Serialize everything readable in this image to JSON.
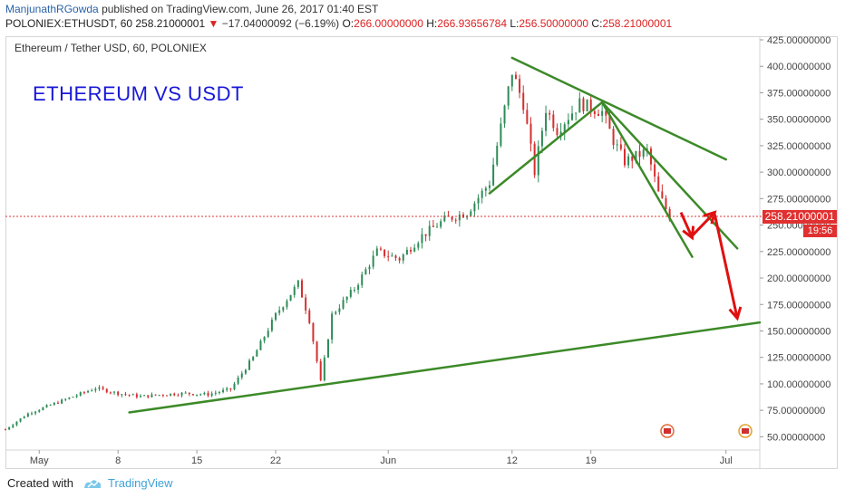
{
  "header": {
    "author": "ManjunathRGowda",
    "published": " published on TradingView.com, June 26, 2017 01:40 EST",
    "symbol": "POLONIEX:ETHUSDT, 60  258.21000001",
    "change_arrow": "▼",
    "change": " −17.04000092 (−6.19%)",
    "o_key": " O:",
    "o_val": "266.00000000",
    "h_key": " H:",
    "h_val": "266.93656784",
    "l_key": " L:",
    "l_val": "256.50000000",
    "c_key": " C:",
    "c_val": "258.21000001"
  },
  "pane_title": "Ethereum / Tether USD, 60, POLONIEX",
  "annotation_title": "ETHEREUM VS USDT",
  "price_tag": "258.21000001",
  "time_tag": "19:56",
  "footer": {
    "created_with": "Created with",
    "brand": "TradingView"
  },
  "colors": {
    "up": "#2e8b57",
    "down": "#d23030",
    "trend": "#3c8a28",
    "arrow": "#e01010",
    "title": "#1818d8"
  },
  "chart_data": {
    "type": "candlestick",
    "title": "Ethereum / Tether USD, 60, POLONIEX",
    "xlabel": "",
    "ylabel": "",
    "ylim": [
      37.5,
      425
    ],
    "y_ticks": [
      "425.00000000",
      "400.00000000",
      "375.00000000",
      "350.00000000",
      "325.00000000",
      "300.00000000",
      "275.00000000",
      "250.00000000",
      "225.00000000",
      "200.00000000",
      "175.00000000",
      "150.00000000",
      "125.00000000",
      "100.00000000",
      "75.00000000",
      "50.00000000"
    ],
    "y_tick_values": [
      425,
      400,
      375,
      350,
      325,
      300,
      275,
      250,
      225,
      200,
      175,
      150,
      125,
      100,
      75,
      50
    ],
    "x_ticks": [
      "May",
      "8",
      "15",
      "22",
      "Jun",
      "12",
      "19",
      "Jul"
    ],
    "x_tick_dates": [
      "2017-05-01",
      "2017-05-08",
      "2017-05-15",
      "2017-05-22",
      "2017-06-01",
      "2017-06-12",
      "2017-06-19",
      "2017-07-01"
    ],
    "x_range": [
      "2017-04-28",
      "2017-07-04"
    ],
    "price_path": [
      [
        "2017-04-28",
        57
      ],
      [
        "2017-04-30",
        72
      ],
      [
        "2017-05-02",
        80
      ],
      [
        "2017-05-04",
        88
      ],
      [
        "2017-05-06",
        96
      ],
      [
        "2017-05-08",
        91
      ],
      [
        "2017-05-10",
        88
      ],
      [
        "2017-05-12",
        90
      ],
      [
        "2017-05-14",
        91
      ],
      [
        "2017-05-16",
        90
      ],
      [
        "2017-05-18",
        95
      ],
      [
        "2017-05-20",
        125
      ],
      [
        "2017-05-22",
        165
      ],
      [
        "2017-05-24",
        195
      ],
      [
        "2017-05-25",
        160
      ],
      [
        "2017-05-26",
        102
      ],
      [
        "2017-05-27",
        165
      ],
      [
        "2017-05-29",
        190
      ],
      [
        "2017-05-31",
        225
      ],
      [
        "2017-06-02",
        218
      ],
      [
        "2017-06-04",
        240
      ],
      [
        "2017-06-06",
        255
      ],
      [
        "2017-06-08",
        262
      ],
      [
        "2017-06-10",
        290
      ],
      [
        "2017-06-12",
        395
      ],
      [
        "2017-06-13",
        365
      ],
      [
        "2017-06-14",
        300
      ],
      [
        "2017-06-15",
        360
      ],
      [
        "2017-06-16",
        340
      ],
      [
        "2017-06-18",
        365
      ],
      [
        "2017-06-20",
        357
      ],
      [
        "2017-06-21",
        330
      ],
      [
        "2017-06-22",
        310
      ],
      [
        "2017-06-24",
        320
      ],
      [
        "2017-06-25",
        280
      ],
      [
        "2017-06-26",
        258
      ]
    ],
    "trendlines": [
      {
        "from": [
          "2017-05-09",
          73
        ],
        "to": [
          "2017-07-04",
          158
        ]
      },
      {
        "from": [
          "2017-06-12",
          408
        ],
        "to": [
          "2017-07-01",
          312
        ]
      },
      {
        "from": [
          "2017-06-10",
          280
        ],
        "to": [
          "2017-06-20",
          366
        ]
      },
      {
        "from": [
          "2017-06-20",
          366
        ],
        "to": [
          "2017-07-02",
          228
        ]
      },
      {
        "from": [
          "2017-06-20",
          366
        ],
        "to": [
          "2017-06-28",
          220
        ]
      }
    ],
    "arrows": [
      {
        "from": [
          "2017-06-27",
          262
        ],
        "to": [
          "2017-06-28",
          238
        ]
      },
      {
        "from": [
          "2017-06-28",
          240
        ],
        "to": [
          "2017-06-30",
          262
        ]
      },
      {
        "from": [
          "2017-06-30",
          260
        ],
        "to": [
          "2017-07-02",
          162
        ]
      }
    ],
    "last_price": 258.21000001,
    "grid": false,
    "legend": "none"
  }
}
